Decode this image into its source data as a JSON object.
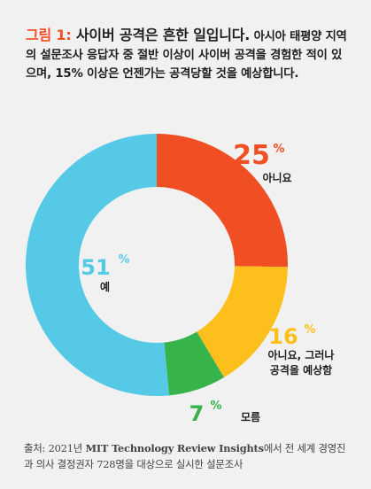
{
  "heading": {
    "fig_label": "그림 1:",
    "bold_text": " 사이버 공격은 흔한 일입니다.",
    "rest_text": " 아시아 태평양 지역의 설문조사 응답자 중 절반 이상이 사이버 공격을 경험한 적이 있으며, 15% 이상은 언젠가는 공격당할 것을 예상합니다."
  },
  "chart_data": {
    "type": "pie",
    "style": "donut",
    "start": "top",
    "direction": "clockwise",
    "slices": [
      {
        "value": 25,
        "label": "아니요",
        "color": "#f04e23"
      },
      {
        "value": 16,
        "label": "아니요, 그러나\n공격을 예상함",
        "color": "#fdbf1b"
      },
      {
        "value": 7,
        "label": "모름",
        "color": "#36b34a"
      },
      {
        "value": 51,
        "label": "예",
        "color": "#55c9e6"
      }
    ],
    "percent_suffix": "%"
  },
  "source": {
    "prefix": "출처: 2021년 ",
    "org": "MIT Technology Review Insights",
    "suffix": "에서 전 세계 경영진과 의사 결정권자 728명을 대상으로 실시한 설문조사"
  }
}
